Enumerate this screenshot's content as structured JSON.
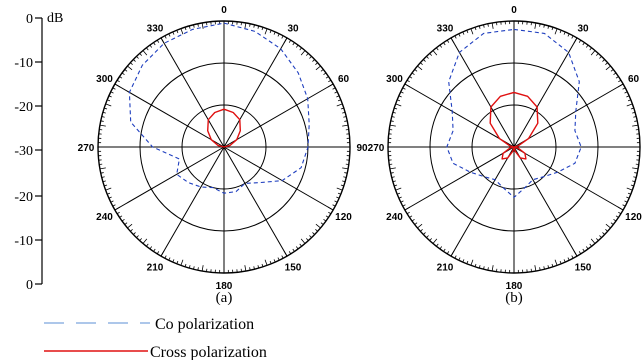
{
  "chart_data": {
    "type": "polar",
    "unit": "dB",
    "radial_ticks": [
      "0",
      "-10",
      "-20",
      "-30",
      "-20",
      "-10",
      "0"
    ],
    "rlim": [
      -30,
      0
    ],
    "angle_ticks": [
      0,
      30,
      60,
      90,
      120,
      150,
      180,
      210,
      240,
      270,
      300,
      330
    ],
    "colors": {
      "co": "#1f3fbf",
      "cross": "#e01010",
      "legend_co": "#5b8fd6"
    },
    "legend": [
      {
        "key": "co",
        "label": "Co polarization",
        "style": "dashed"
      },
      {
        "key": "cross",
        "label": "Cross polarization",
        "style": "solid"
      }
    ],
    "panels": [
      {
        "label": "(a)",
        "series": [
          {
            "key": "co",
            "angles": [
              0,
              15,
              30,
              45,
              60,
              75,
              90,
              105,
              120,
              135,
              150,
              165,
              180,
              195,
              210,
              225,
              240,
              255,
              270,
              285,
              300,
              315,
              330,
              345
            ],
            "values": [
              -0.5,
              -1.5,
              -3,
              -5,
              -7,
              -9,
              -10,
              -11,
              -14,
              -18,
              -20,
              -19,
              -19,
              -20,
              -19,
              -18,
              -17,
              -19,
              -13,
              -7,
              -4,
              -2.5,
              -1.5,
              -1
            ]
          },
          {
            "key": "cross",
            "angles": [
              0,
              15,
              30,
              45,
              60,
              75,
              90,
              120,
              150,
              180,
              210,
              240,
              270,
              285,
              300,
              315,
              330,
              345
            ],
            "values": [
              -21,
              -21.5,
              -22.5,
              -24.5,
              -26.5,
              -28.5,
              -30,
              -30,
              -30,
              -30,
              -30,
              -30,
              -30,
              -28.5,
              -26.5,
              -24.5,
              -22.5,
              -21.5
            ]
          }
        ]
      },
      {
        "label": "(b)",
        "series": [
          {
            "key": "co",
            "angles": [
              0,
              15,
              30,
              45,
              60,
              75,
              90,
              105,
              120,
              135,
              150,
              165,
              180,
              195,
              210,
              225,
              240,
              255,
              270,
              285,
              300,
              315,
              330,
              345
            ],
            "values": [
              -2,
              -2,
              -4,
              -8,
              -13,
              -15,
              -14,
              -15,
              -18,
              -20,
              -21,
              -20,
              -18,
              -20,
              -21,
              -20,
              -18,
              -15,
              -14,
              -15,
              -13,
              -8,
              -4,
              -2
            ]
          },
          {
            "key": "cross",
            "angles": [
              0,
              15,
              30,
              45,
              60,
              75,
              90,
              105,
              120,
              135,
              150,
              165,
              180,
              195,
              210,
              225,
              240,
              255,
              270,
              285,
              300,
              315,
              330,
              345
            ],
            "values": [
              -17,
              -17.5,
              -19,
              -22,
              -26,
              -29,
              -30,
              -29,
              -27,
              -26,
              -27,
              -29,
              -30,
              -29,
              -27,
              -26,
              -27,
              -29,
              -30,
              -29,
              -26,
              -22,
              -19,
              -17.5
            ]
          }
        ]
      }
    ]
  }
}
